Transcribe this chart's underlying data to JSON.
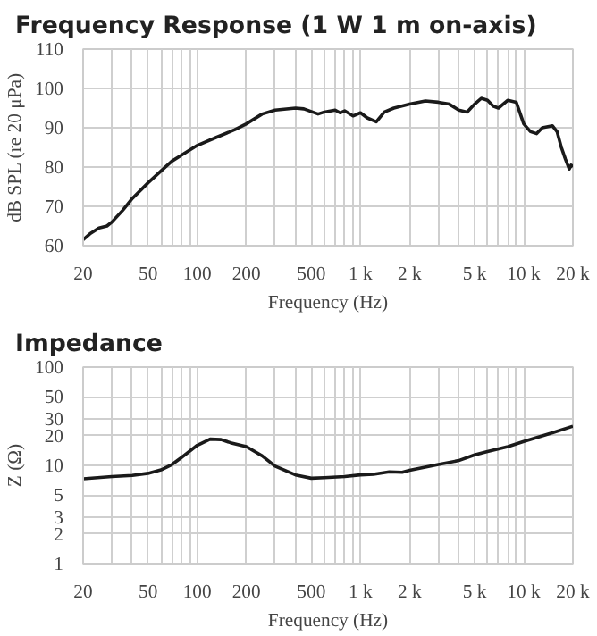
{
  "chart_data": [
    {
      "type": "line",
      "title": "Frequency Response (1 W 1 m on-axis)",
      "xlabel": "Frequency (Hz)",
      "ylabel": "dB SPL (re 20 μPa)",
      "log": "x",
      "grid": true,
      "line_style": "solid",
      "xlim": [
        20,
        20000
      ],
      "ylim": [
        60,
        110
      ],
      "xticks": [
        20,
        {
          "value": 30,
          "label": null
        },
        {
          "value": 40,
          "label": null
        },
        50,
        {
          "value": 60,
          "label": null
        },
        {
          "value": 70,
          "label": null
        },
        {
          "value": 80,
          "label": null
        },
        {
          "value": 90,
          "label": null
        },
        100,
        200,
        {
          "value": 300,
          "label": null
        },
        {
          "value": 400,
          "label": null
        },
        500,
        {
          "value": 600,
          "label": null
        },
        {
          "value": 700,
          "label": null
        },
        {
          "value": 800,
          "label": null
        },
        {
          "value": 900,
          "label": null
        },
        {
          "value": 1000,
          "label": "1 k"
        },
        {
          "value": 2000,
          "label": "2 k"
        },
        {
          "value": 3000,
          "label": null
        },
        {
          "value": 4000,
          "label": null
        },
        {
          "value": 5000,
          "label": "5 k"
        },
        {
          "value": 6000,
          "label": null
        },
        {
          "value": 7000,
          "label": null
        },
        {
          "value": 8000,
          "label": null
        },
        {
          "value": 9000,
          "label": null
        },
        {
          "value": 10000,
          "label": "10 k"
        },
        {
          "value": 20000,
          "label": "20 k"
        }
      ],
      "yticks": [
        60,
        70,
        80,
        90,
        100,
        110
      ],
      "series": [
        {
          "color": "#1a1a1a",
          "x": [
            20,
            22,
            25,
            28,
            30,
            35,
            40,
            50,
            60,
            70,
            80,
            100,
            130,
            170,
            200,
            250,
            300,
            400,
            450,
            550,
            600,
            700,
            750,
            800,
            900,
            1000,
            1100,
            1250,
            1400,
            1600,
            2000,
            2500,
            3000,
            3500,
            4000,
            4500,
            5000,
            5500,
            6000,
            6500,
            7000,
            8000,
            9000,
            10000,
            11000,
            12000,
            13000,
            15000,
            16000,
            17000,
            18000,
            19000,
            19500,
            20000
          ],
          "values": [
            61.5,
            63,
            64.5,
            65,
            66,
            69,
            72,
            76,
            79,
            81.5,
            83,
            85.5,
            87.5,
            89.5,
            91,
            93.5,
            94.5,
            95,
            94.8,
            93.5,
            94,
            94.5,
            93.8,
            94.3,
            93,
            93.8,
            92.5,
            91.5,
            94,
            95,
            96,
            96.8,
            96.5,
            96,
            94.5,
            94,
            96,
            97.5,
            97,
            95.5,
            95,
            97,
            96.5,
            91,
            89,
            88.5,
            90,
            90.5,
            89,
            85,
            82,
            79.5,
            80.5,
            80
          ]
        }
      ]
    },
    {
      "type": "line",
      "title": "Impedance",
      "xlabel": "Frequency (Hz)",
      "ylabel": "Z (Ω)",
      "log": "xy",
      "grid": true,
      "line_style": "solid",
      "xlim": [
        20,
        20000
      ],
      "ylim": [
        1,
        100
      ],
      "xticks": [
        20,
        {
          "value": 30,
          "label": null
        },
        {
          "value": 40,
          "label": null
        },
        50,
        {
          "value": 60,
          "label": null
        },
        {
          "value": 70,
          "label": null
        },
        {
          "value": 80,
          "label": null
        },
        {
          "value": 90,
          "label": null
        },
        100,
        200,
        {
          "value": 300,
          "label": null
        },
        {
          "value": 400,
          "label": null
        },
        500,
        {
          "value": 600,
          "label": null
        },
        {
          "value": 700,
          "label": null
        },
        {
          "value": 800,
          "label": null
        },
        {
          "value": 900,
          "label": null
        },
        {
          "value": 1000,
          "label": "1 k"
        },
        {
          "value": 2000,
          "label": "2 k"
        },
        {
          "value": 3000,
          "label": null
        },
        {
          "value": 4000,
          "label": null
        },
        {
          "value": 5000,
          "label": "5 k"
        },
        {
          "value": 6000,
          "label": null
        },
        {
          "value": 7000,
          "label": null
        },
        {
          "value": 8000,
          "label": null
        },
        {
          "value": 9000,
          "label": null
        },
        {
          "value": 10000,
          "label": "10 k"
        },
        {
          "value": 20000,
          "label": "20 k"
        }
      ],
      "yticks": [
        1,
        2,
        3,
        5,
        10,
        20,
        30,
        50,
        100
      ],
      "series": [
        {
          "color": "#1a1a1a",
          "x": [
            20,
            30,
            40,
            50,
            60,
            70,
            80,
            100,
            120,
            140,
            160,
            200,
            250,
            300,
            400,
            500,
            600,
            800,
            1000,
            1200,
            1500,
            1800,
            2000,
            3000,
            4000,
            5000,
            6000,
            8000,
            10000,
            15000,
            20000
          ],
          "values": [
            7.3,
            7.7,
            7.9,
            8.3,
            9,
            10.2,
            12,
            16,
            18.5,
            18.3,
            17,
            15.5,
            12.5,
            9.8,
            8,
            7.4,
            7.5,
            7.7,
            8,
            8.1,
            8.6,
            8.5,
            8.9,
            10.2,
            11.2,
            12.8,
            13.8,
            15.5,
            17.5,
            21.5,
            25
          ]
        }
      ]
    }
  ]
}
